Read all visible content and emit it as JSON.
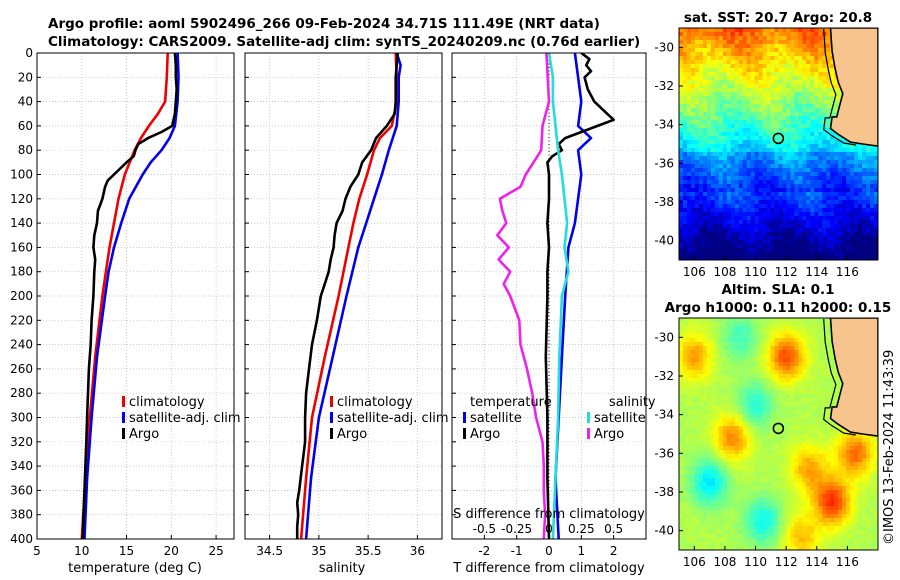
{
  "header": {
    "line1": "Argo profile: aoml 5902496_266 09-Feb-2024 34.71S 111.49E (NRT data)",
    "line2": "Climatology: CARS2009. Satellite-adj clim: synTS_20240209.nc (0.76d earlier)"
  },
  "map_top": {
    "title": "sat. SST: 20.7 Argo: 20.8",
    "argo_lon": 111.49,
    "argo_lat": -34.71
  },
  "map_bottom": {
    "title1": "Altim. SLA: 0.1",
    "title2": "Argo h1000: 0.11 h2000: 0.15",
    "argo_lon": 111.49,
    "argo_lat": -34.71
  },
  "map_axes": {
    "xticks": [
      106,
      108,
      110,
      112,
      114,
      116
    ],
    "yticks": [
      -30,
      -32,
      -34,
      -36,
      -38,
      -40
    ],
    "xlim": [
      105,
      118
    ],
    "ylim": [
      -41,
      -29
    ]
  },
  "stamp": "©IMOS 13-Feb-2024 11:43:39",
  "colors": {
    "climatology": "#ee0000",
    "satellite_adj": "#0000ee",
    "argo": "#000000",
    "sal_satellite": "#22dddd",
    "sal_argo": "#ee22ee",
    "land": "#f7c48e"
  },
  "chart_data": [
    {
      "type": "line",
      "panel": "temperature",
      "xlabel": "temperature (deg C)",
      "ylabel": "",
      "xlim": [
        5,
        27
      ],
      "ylim": [
        400,
        0
      ],
      "xticks": [
        5,
        10,
        15,
        20,
        25
      ],
      "yticks": [
        0,
        20,
        40,
        60,
        80,
        100,
        120,
        140,
        160,
        180,
        200,
        220,
        240,
        260,
        280,
        300,
        320,
        340,
        360,
        380,
        400
      ],
      "legend": [
        "climatology",
        "satellite-adj. clim",
        "Argo"
      ],
      "series": [
        {
          "name": "climatology",
          "depth": [
            0,
            20,
            40,
            50,
            60,
            70,
            80,
            100,
            120,
            140,
            160,
            180,
            200,
            250,
            300,
            350,
            400
          ],
          "values": [
            19.6,
            19.5,
            19.3,
            18.5,
            17.5,
            16.6,
            15.9,
            14.8,
            14.1,
            13.6,
            13.1,
            12.7,
            12.3,
            11.5,
            10.9,
            10.4,
            10.0
          ]
        },
        {
          "name": "satellite-adj. clim",
          "depth": [
            0,
            20,
            40,
            60,
            70,
            80,
            90,
            100,
            120,
            140,
            160,
            180,
            200,
            250,
            300,
            350,
            400
          ],
          "values": [
            20.7,
            20.8,
            20.7,
            20.4,
            19.8,
            18.9,
            17.7,
            16.8,
            15.3,
            14.4,
            13.6,
            13.0,
            12.6,
            11.7,
            11.1,
            10.6,
            10.3
          ]
        },
        {
          "name": "Argo",
          "depth": [
            0,
            10,
            20,
            30,
            40,
            50,
            60,
            65,
            70,
            75,
            80,
            85,
            90,
            100,
            105,
            110,
            120,
            130,
            140,
            150,
            160,
            170,
            180,
            200,
            220,
            240,
            260,
            280,
            300,
            320,
            340,
            360,
            380,
            400
          ],
          "values": [
            20.4,
            20.5,
            20.5,
            20.6,
            20.5,
            20.4,
            20.1,
            18.9,
            17.4,
            16.3,
            16.0,
            15.8,
            15.0,
            13.6,
            12.9,
            12.6,
            12.3,
            11.8,
            11.7,
            11.4,
            11.3,
            11.5,
            11.4,
            11.3,
            11.1,
            11.0,
            10.8,
            10.7,
            10.6,
            10.5,
            10.4,
            10.3,
            10.2,
            10.1
          ]
        }
      ]
    },
    {
      "type": "line",
      "panel": "salinity",
      "xlabel": "salinity",
      "ylabel": "",
      "xlim": [
        34.25,
        36.25
      ],
      "ylim": [
        400,
        0
      ],
      "xticks": [
        34.5,
        35,
        35.5,
        36
      ],
      "xticklabels": [
        "34.5",
        "35",
        "35.5",
        "36"
      ],
      "legend": [
        "climatology",
        "satellite-adj. clim",
        "Argo"
      ],
      "series": [
        {
          "name": "climatology",
          "depth": [
            0,
            20,
            40,
            60,
            70,
            80,
            100,
            120,
            140,
            160,
            180,
            200,
            250,
            300,
            350,
            400
          ],
          "values": [
            35.78,
            35.79,
            35.79,
            35.74,
            35.62,
            35.56,
            35.49,
            35.41,
            35.35,
            35.3,
            35.25,
            35.2,
            35.06,
            34.93,
            34.87,
            34.82
          ]
        },
        {
          "name": "satellite-adj. clim",
          "depth": [
            0,
            10,
            20,
            40,
            60,
            80,
            100,
            120,
            140,
            160,
            180,
            200,
            250,
            300,
            350,
            400
          ],
          "values": [
            35.79,
            35.83,
            35.81,
            35.81,
            35.79,
            35.71,
            35.64,
            35.56,
            35.48,
            35.4,
            35.34,
            35.28,
            35.14,
            35.0,
            34.92,
            34.87
          ]
        },
        {
          "name": "Argo",
          "depth": [
            0,
            20,
            40,
            50,
            60,
            70,
            80,
            90,
            100,
            110,
            120,
            130,
            140,
            150,
            160,
            170,
            180,
            190,
            200,
            220,
            240,
            260,
            280,
            300,
            320,
            340,
            360,
            370,
            380,
            390,
            400
          ],
          "values": [
            35.8,
            35.78,
            35.78,
            35.77,
            35.69,
            35.58,
            35.53,
            35.44,
            35.4,
            35.32,
            35.27,
            35.24,
            35.18,
            35.16,
            35.15,
            35.12,
            35.1,
            35.06,
            35.02,
            34.98,
            34.93,
            34.9,
            34.87,
            34.86,
            34.86,
            34.83,
            34.8,
            34.78,
            34.79,
            34.78,
            34.78
          ]
        }
      ]
    },
    {
      "type": "line",
      "panel": "difference",
      "xlabel": "T difference from climatology",
      "top_axis_label": "S difference from climatology",
      "xlim": [
        -3,
        3
      ],
      "ylim": [
        400,
        0
      ],
      "xticks": [
        -2,
        -1,
        0,
        1,
        2
      ],
      "s_xticks": [
        -0.5,
        -0.25,
        0,
        0.25,
        0.5
      ],
      "s_xticklabels": [
        "-0.5",
        "-0.25",
        "0",
        "0.25",
        "0.5"
      ],
      "legend_headers": [
        "temperature",
        "salinity"
      ],
      "legend": [
        "satellite",
        "Argo",
        "satellite",
        "Argo"
      ],
      "series": [
        {
          "name": "T satellite",
          "depth": [
            0,
            20,
            40,
            60,
            70,
            80,
            100,
            120,
            140,
            160,
            200,
            250,
            300,
            350,
            400
          ],
          "values": [
            0.8,
            0.9,
            1.0,
            0.9,
            1.3,
            0.9,
            1.0,
            0.9,
            0.8,
            0.6,
            0.5,
            0.4,
            0.3,
            0.2,
            0.3
          ]
        },
        {
          "name": "T Argo",
          "depth": [
            0,
            5,
            10,
            15,
            20,
            30,
            40,
            50,
            55,
            60,
            65,
            70,
            75,
            80,
            85,
            90,
            100,
            110,
            120,
            140,
            160,
            180,
            200,
            250,
            300,
            350,
            400
          ],
          "values": [
            1.0,
            1.25,
            1.15,
            1.3,
            1.1,
            1.2,
            1.4,
            1.8,
            2.0,
            1.5,
            1.0,
            0.5,
            0.3,
            0.4,
            0.1,
            -0.05,
            0.0,
            0.0,
            0.0,
            -0.05,
            0.0,
            -0.05,
            -0.05,
            -0.1,
            -0.05,
            -0.05,
            0.0
          ]
        },
        {
          "name": "S satellite",
          "depth": [
            0,
            20,
            40,
            60,
            80,
            100,
            120,
            140,
            160,
            180,
            200,
            250,
            300,
            350,
            400
          ],
          "values": [
            0.0,
            0.03,
            0.03,
            0.05,
            0.07,
            0.1,
            0.12,
            0.14,
            0.12,
            0.15,
            0.1,
            0.08,
            0.07,
            0.05,
            0.03
          ]
        },
        {
          "name": "S Argo",
          "depth": [
            0,
            20,
            40,
            60,
            80,
            90,
            100,
            110,
            120,
            130,
            140,
            150,
            160,
            170,
            180,
            190,
            200,
            220,
            240,
            260,
            280,
            300,
            320,
            340,
            360,
            380,
            400
          ],
          "values": [
            -0.02,
            -0.01,
            0.0,
            -0.05,
            -0.06,
            -0.12,
            -0.18,
            -0.22,
            -0.38,
            -0.36,
            -0.33,
            -0.4,
            -0.31,
            -0.39,
            -0.3,
            -0.35,
            -0.3,
            -0.23,
            -0.22,
            -0.17,
            -0.13,
            -0.1,
            -0.05,
            -0.04,
            -0.04,
            -0.03,
            -0.04
          ]
        }
      ]
    }
  ]
}
